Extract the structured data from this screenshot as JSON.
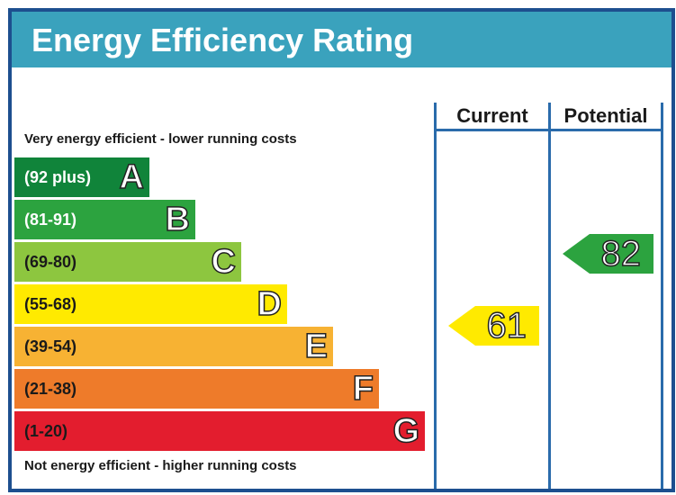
{
  "chart_data": {
    "type": "bar",
    "title": "Energy Efficiency Rating",
    "columns": [
      "Current",
      "Potential"
    ],
    "top_note": "Very energy efficient - lower running costs",
    "bottom_note": "Not energy efficient - higher running costs",
    "bands": [
      {
        "letter": "A",
        "range": "(92 plus)",
        "min": 92,
        "max": 100,
        "color": "#10843a",
        "text_color": "#ffffff"
      },
      {
        "letter": "B",
        "range": "(81-91)",
        "min": 81,
        "max": 91,
        "color": "#2ca33f",
        "text_color": "#ffffff"
      },
      {
        "letter": "C",
        "range": "(69-80)",
        "min": 69,
        "max": 80,
        "color": "#8dc63f",
        "text_color": "#1a1a1a"
      },
      {
        "letter": "D",
        "range": "(55-68)",
        "min": 55,
        "max": 68,
        "color": "#ffea00",
        "text_color": "#1a1a1a"
      },
      {
        "letter": "E",
        "range": "(39-54)",
        "min": 39,
        "max": 54,
        "color": "#f7b233",
        "text_color": "#1a1a1a"
      },
      {
        "letter": "F",
        "range": "(21-38)",
        "min": 21,
        "max": 38,
        "color": "#ee7b2a",
        "text_color": "#1a1a1a"
      },
      {
        "letter": "G",
        "range": "(1-20)",
        "min": 1,
        "max": 20,
        "color": "#e31d2e",
        "text_color": "#1a1a1a"
      }
    ],
    "ratings": {
      "current": {
        "value": 61,
        "band": "D",
        "color": "#ffea00"
      },
      "potential": {
        "value": 82,
        "band": "B",
        "color": "#2ca33f"
      }
    }
  }
}
